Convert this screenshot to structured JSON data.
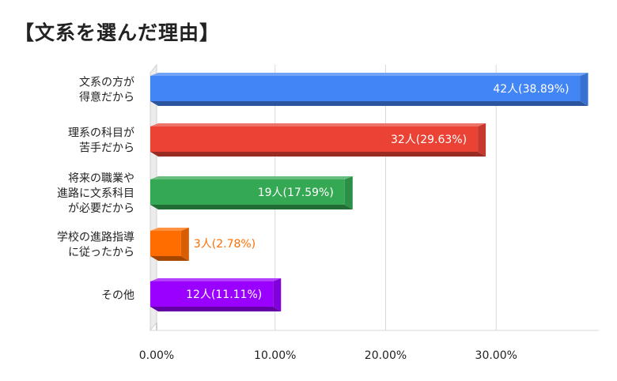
{
  "title": "【文系を選んだ理由】",
  "chart_data": {
    "type": "bar",
    "orientation": "horizontal",
    "style": "3d",
    "categories": [
      [
        "文系の方が",
        "得意だから"
      ],
      [
        "理系の科目が",
        "苦手だから"
      ],
      [
        "将来の職業や",
        "進路に文系科目",
        "が必要だから"
      ],
      [
        "学校の進路指導",
        "に従ったから"
      ],
      [
        "その他"
      ]
    ],
    "values": [
      38.89,
      29.63,
      17.59,
      2.78,
      11.11
    ],
    "data_labels": [
      "42人(38.89%)",
      "32人(29.63%)",
      "19人(17.59%)",
      "3人(2.78%)",
      "12人(11.11%)"
    ],
    "colors": [
      "#4285f4",
      "#ea4335",
      "#34a853",
      "#ff6d01",
      "#9900ff"
    ],
    "xlim": [
      0,
      40
    ],
    "x_ticks": [
      0,
      10,
      20,
      30
    ],
    "x_tick_labels": [
      "0.00%",
      "10.00%",
      "20.00%",
      "30.00%"
    ],
    "grid": true
  }
}
